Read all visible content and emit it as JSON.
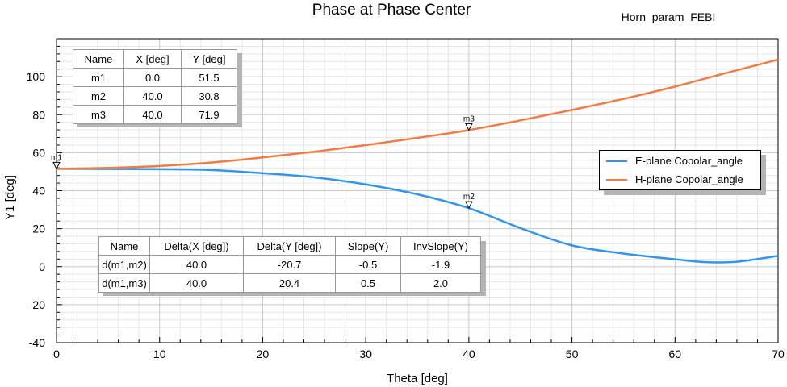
{
  "chart_data": {
    "type": "line",
    "title": "Phase at Phase Center",
    "subtitle": "Horn_param_FEBI",
    "xlabel": "Theta [deg]",
    "ylabel": "Y1 [deg]",
    "xlim": [
      0,
      70
    ],
    "ylim": [
      -40,
      120
    ],
    "x_ticks": [
      "0",
      "10",
      "20",
      "30",
      "40",
      "50",
      "60",
      "70"
    ],
    "y_ticks": [
      "-40",
      "-20",
      "0",
      "20",
      "40",
      "60",
      "80",
      "100"
    ],
    "grid": true,
    "legend_position": "right",
    "series": [
      {
        "name": "E-plane Copolar_angle",
        "color": "#3296eb",
        "x": [
          0,
          5,
          10,
          15,
          20,
          25,
          30,
          35,
          40,
          45,
          50,
          55,
          60,
          63,
          66,
          70
        ],
        "y": [
          51.5,
          51.4,
          51.3,
          50.9,
          49.2,
          47.0,
          43.3,
          38.1,
          30.8,
          20.3,
          11.2,
          6.9,
          3.9,
          2.4,
          2.6,
          5.7
        ]
      },
      {
        "name": "H-plane Copolar_angle",
        "color": "#f07d46",
        "x": [
          0,
          5,
          10,
          15,
          20,
          25,
          30,
          35,
          40,
          45,
          50,
          55,
          60,
          65,
          70
        ],
        "y": [
          51.5,
          52.0,
          53.0,
          54.8,
          57.5,
          60.5,
          64.0,
          67.8,
          71.9,
          77.0,
          82.5,
          88.3,
          94.8,
          102.0,
          109.0
        ]
      }
    ],
    "markers": [
      {
        "name": "m1",
        "x": 0.0,
        "y": 51.5
      },
      {
        "name": "m2",
        "x": 40.0,
        "y": 30.8
      },
      {
        "name": "m3",
        "x": 40.0,
        "y": 71.9
      }
    ],
    "marker_table": {
      "headers": [
        "Name",
        "X [deg]",
        "Y [deg]"
      ],
      "rows": [
        [
          "m1",
          "0.0",
          "51.5"
        ],
        [
          "m2",
          "40.0",
          "30.8"
        ],
        [
          "m3",
          "40.0",
          "71.9"
        ]
      ]
    },
    "delta_table": {
      "headers": [
        "Name",
        "Delta(X [deg])",
        "Delta(Y [deg])",
        "Slope(Y)",
        "InvSlope(Y)"
      ],
      "rows": [
        [
          "d(m1,m2)",
          "40.0",
          "-20.7",
          "-0.5",
          "-1.9"
        ],
        [
          "d(m1,m3)",
          "40.0",
          "20.4",
          "0.5",
          "2.0"
        ]
      ]
    }
  }
}
